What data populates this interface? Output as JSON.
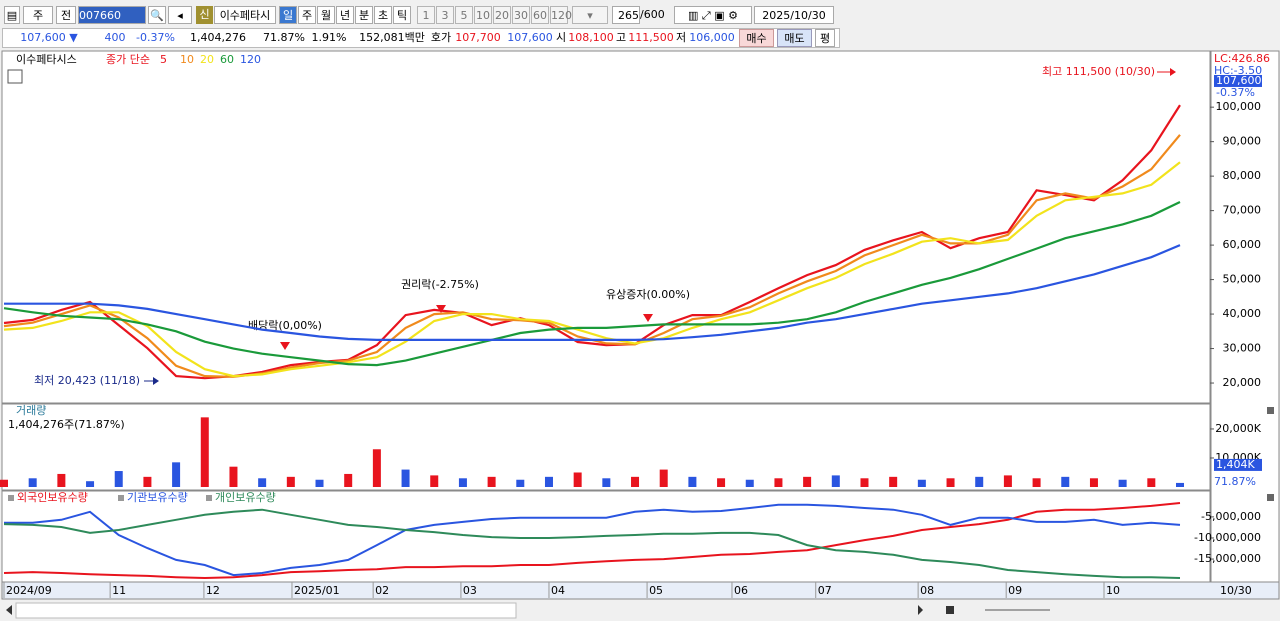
{
  "toolbar": {
    "market": "주",
    "prev": "전",
    "code": "007660",
    "badge": "신",
    "name": "이수페타시",
    "periods": [
      "일",
      "주",
      "월",
      "년",
      "분",
      "초",
      "틱"
    ],
    "intervals": [
      "1",
      "3",
      "5",
      "10",
      "20",
      "30",
      "60",
      "120"
    ],
    "count": "265",
    "max": "/600",
    "date": "2025/10/30"
  },
  "quote_bar": {
    "price": "107,600 ▼",
    "change": "400",
    "change_pct": "-0.37%",
    "volume": "1,404,276",
    "volume_ratio": "71.87%",
    "turnover": "1.91%",
    "amount": "152,081백만",
    "ask_label": "호가",
    "ask": "107,700",
    "bid": "107,600",
    "open_label": "시",
    "open": "108,100",
    "high_label": "고",
    "high": "111,500",
    "low_label": "저",
    "low": "106,000",
    "buy": "매수",
    "sell": "매도",
    "avg": "평"
  },
  "chart_data": [
    {
      "type": "line",
      "title": "이수페타시스",
      "legend_label": "종가 단순",
      "series": [
        {
          "name": "5",
          "color": "#e8141e",
          "values": [
            37400,
            38300,
            41200,
            43500,
            36800,
            30100,
            22000,
            21400,
            22000,
            23200,
            25200,
            26100,
            26700,
            31000,
            39700,
            41200,
            40300,
            36800,
            38800,
            36800,
            31900,
            31000,
            31300,
            36800,
            39700,
            39700,
            43500,
            47500,
            51300,
            54200,
            58600,
            61400,
            63800,
            59100,
            62000,
            63800,
            75900,
            74500,
            73000,
            78800,
            87500,
            100600
          ]
        },
        {
          "name": "10",
          "color": "#f08a1c",
          "values": [
            36500,
            37500,
            40000,
            42500,
            39000,
            33000,
            25000,
            22000,
            21800,
            22800,
            24500,
            25800,
            26500,
            29000,
            36000,
            40000,
            40500,
            38500,
            38200,
            37500,
            33500,
            31500,
            31200,
            34500,
            38500,
            39500,
            42000,
            46000,
            49500,
            52500,
            57000,
            60000,
            63000,
            60500,
            60500,
            63000,
            73000,
            75000,
            73500,
            77000,
            82000,
            92000
          ]
        },
        {
          "name": "20",
          "color": "#f2e31c",
          "values": [
            35500,
            36000,
            38000,
            40500,
            40500,
            36500,
            29000,
            24000,
            22000,
            22500,
            24000,
            25000,
            26000,
            27500,
            32000,
            38000,
            40000,
            40000,
            38500,
            38000,
            35500,
            33000,
            31500,
            33000,
            36000,
            38500,
            40500,
            44000,
            47500,
            50500,
            54500,
            57500,
            61000,
            62000,
            60500,
            61500,
            68500,
            73000,
            74000,
            75000,
            77500,
            84000
          ]
        },
        {
          "name": "60",
          "color": "#1a9a3a",
          "values": [
            41700,
            40500,
            39500,
            39000,
            38500,
            37000,
            35000,
            32000,
            30000,
            28500,
            27500,
            26500,
            25500,
            25200,
            26500,
            28500,
            30500,
            32500,
            34500,
            35500,
            36000,
            36000,
            36500,
            37000,
            37000,
            37000,
            37000,
            37500,
            38500,
            40500,
            43500,
            46000,
            48500,
            50500,
            53000,
            56000,
            59000,
            62000,
            64000,
            66000,
            68500,
            72500
          ]
        },
        {
          "name": "120",
          "color": "#2a55e0",
          "values": [
            43000,
            43000,
            43000,
            43000,
            42500,
            41500,
            40000,
            38500,
            37000,
            35500,
            34500,
            33500,
            32800,
            32500,
            32500,
            32500,
            32500,
            32500,
            32500,
            32500,
            32500,
            32500,
            32500,
            32700,
            33300,
            34000,
            35000,
            36000,
            37500,
            38500,
            40000,
            41500,
            43000,
            44000,
            45000,
            46000,
            47500,
            49500,
            51500,
            54000,
            56500,
            60000
          ]
        }
      ],
      "ylim": [
        14500,
        116000
      ],
      "yticks": [
        {
          "value": 20000,
          "label": "20,000"
        },
        {
          "value": 30000,
          "label": "30,000"
        },
        {
          "value": 40000,
          "label": "40,000"
        },
        {
          "value": 50000,
          "label": "50,000"
        },
        {
          "value": 60000,
          "label": "60,000"
        },
        {
          "value": 70000,
          "label": "70,000"
        },
        {
          "value": 80000,
          "label": "80,000"
        },
        {
          "value": 90000,
          "label": "90,000"
        },
        {
          "value": 100000,
          "label": "100,000"
        }
      ],
      "grid": false,
      "lc_label": "LC:426.86",
      "hc_label": "HC:-3.50",
      "last_price": {
        "value": 107600,
        "label": "107,600"
      },
      "last_change": "-0.37%",
      "high_note": "최고 111,500 (10/30)",
      "low_note": "최저 20,423 (11/18)",
      "events": [
        "배당락(0,00%)",
        "권리락(-2.75%)",
        "유상증자(0.00%)"
      ]
    },
    {
      "type": "bar",
      "title": "거래량",
      "subtitle": "1,404,276주(71.87%)",
      "values": [
        2500,
        3000,
        4500,
        2000,
        5500,
        3500,
        8500,
        24000,
        7000,
        3000,
        3500,
        2500,
        4500,
        13000,
        6000,
        4000,
        3000,
        3500,
        2500,
        3500,
        5000,
        3000,
        3500,
        6000,
        3500,
        3000,
        2500,
        3000,
        3500,
        4000,
        3000,
        3500,
        2500,
        3000,
        3500,
        4000,
        3000,
        3500,
        3000,
        2500,
        3000,
        1404
      ],
      "colors": [
        "#e8141e",
        "#2a55e0",
        "#e8141e",
        "#2a55e0",
        "#2a55e0",
        "#e8141e",
        "#2a55e0",
        "#e8141e",
        "#e8141e",
        "#2a55e0",
        "#e8141e",
        "#2a55e0",
        "#e8141e",
        "#e8141e",
        "#2a55e0",
        "#e8141e",
        "#2a55e0",
        "#e8141e",
        "#2a55e0",
        "#2a55e0",
        "#e8141e",
        "#2a55e0",
        "#e8141e",
        "#e8141e",
        "#2a55e0",
        "#e8141e",
        "#2a55e0",
        "#e8141e",
        "#e8141e",
        "#2a55e0",
        "#e8141e",
        "#e8141e",
        "#2a55e0",
        "#e8141e",
        "#2a55e0",
        "#e8141e",
        "#e8141e",
        "#2a55e0",
        "#e8141e",
        "#2a55e0",
        "#e8141e",
        "#2a55e0"
      ],
      "ylim": [
        0,
        28600
      ],
      "yticks": [
        {
          "value": 10000,
          "label": "10,000K"
        },
        {
          "value": 20000,
          "label": "20,000K"
        }
      ],
      "last_value": {
        "value": 1404,
        "label": "1,404K"
      },
      "last_ratio": "71.87%"
    },
    {
      "type": "line",
      "series": [
        {
          "name": "외국인보유수량",
          "color": "#e8141e",
          "values": [
            -18300000,
            -18100000,
            -18300000,
            -18600000,
            -18800000,
            -19000000,
            -19300000,
            -19500000,
            -19300000,
            -18800000,
            -18100000,
            -17900000,
            -17600000,
            -17400000,
            -16900000,
            -16900000,
            -16700000,
            -16700000,
            -16400000,
            -16400000,
            -15900000,
            -15500000,
            -15200000,
            -15000000,
            -14500000,
            -14000000,
            -13800000,
            -13300000,
            -12900000,
            -11700000,
            -10500000,
            -9500000,
            -8100000,
            -7400000,
            -6700000,
            -5700000,
            -3800000,
            -3300000,
            -3300000,
            -2900000,
            -2400000,
            -1700000
          ]
        },
        {
          "name": "기관보유수량",
          "color": "#2a55e0",
          "values": [
            -6400000,
            -6400000,
            -5700000,
            -3800000,
            -9300000,
            -12400000,
            -15200000,
            -16400000,
            -18800000,
            -18300000,
            -17100000,
            -16400000,
            -15200000,
            -11700000,
            -8100000,
            -6900000,
            -6200000,
            -5500000,
            -5200000,
            -5200000,
            -5200000,
            -5200000,
            -3800000,
            -3300000,
            -3800000,
            -3600000,
            -2900000,
            -2100000,
            -2100000,
            -2400000,
            -2900000,
            -3300000,
            -4500000,
            -6900000,
            -5200000,
            -5200000,
            -6200000,
            -6200000,
            -5700000,
            -6900000,
            -6400000,
            -6900000
          ]
        },
        {
          "name": "개인보유수량",
          "color": "#2e8a5a",
          "values": [
            -6700000,
            -6900000,
            -7400000,
            -8800000,
            -8100000,
            -6900000,
            -5700000,
            -4500000,
            -3800000,
            -3300000,
            -4500000,
            -5700000,
            -6900000,
            -7400000,
            -8100000,
            -8600000,
            -9300000,
            -9800000,
            -10000000,
            -10000000,
            -9800000,
            -9500000,
            -9300000,
            -9000000,
            -9000000,
            -8800000,
            -8800000,
            -9300000,
            -11700000,
            -12900000,
            -13300000,
            -14000000,
            -15200000,
            -15700000,
            -16400000,
            -17600000,
            -18100000,
            -18600000,
            -19000000,
            -19300000,
            -19300000,
            -19500000
          ]
        }
      ],
      "ylim": [
        -20200000,
        900000
      ],
      "yticks": [
        {
          "value": -15000000,
          "label": "-15,000,000"
        },
        {
          "value": -10000000,
          "label": "-10,000,000"
        },
        {
          "value": -5000000,
          "label": "-5,000,000"
        }
      ],
      "xticks": [
        {
          "value": 0,
          "label": "2024/09"
        },
        {
          "value": 3.7,
          "label": "11"
        },
        {
          "value": 6.97,
          "label": "12"
        },
        {
          "value": 10.04,
          "label": "2025/01"
        },
        {
          "value": 12.87,
          "label": "02"
        },
        {
          "value": 15.93,
          "label": "03"
        },
        {
          "value": 19,
          "label": "04"
        },
        {
          "value": 22.42,
          "label": "05"
        },
        {
          "value": 25.38,
          "label": "06"
        },
        {
          "value": 28.3,
          "label": "07"
        },
        {
          "value": 31.87,
          "label": "08"
        },
        {
          "value": 34.94,
          "label": "09"
        },
        {
          "value": 38.35,
          "label": "10"
        }
      ],
      "last_date": "10/30"
    }
  ]
}
